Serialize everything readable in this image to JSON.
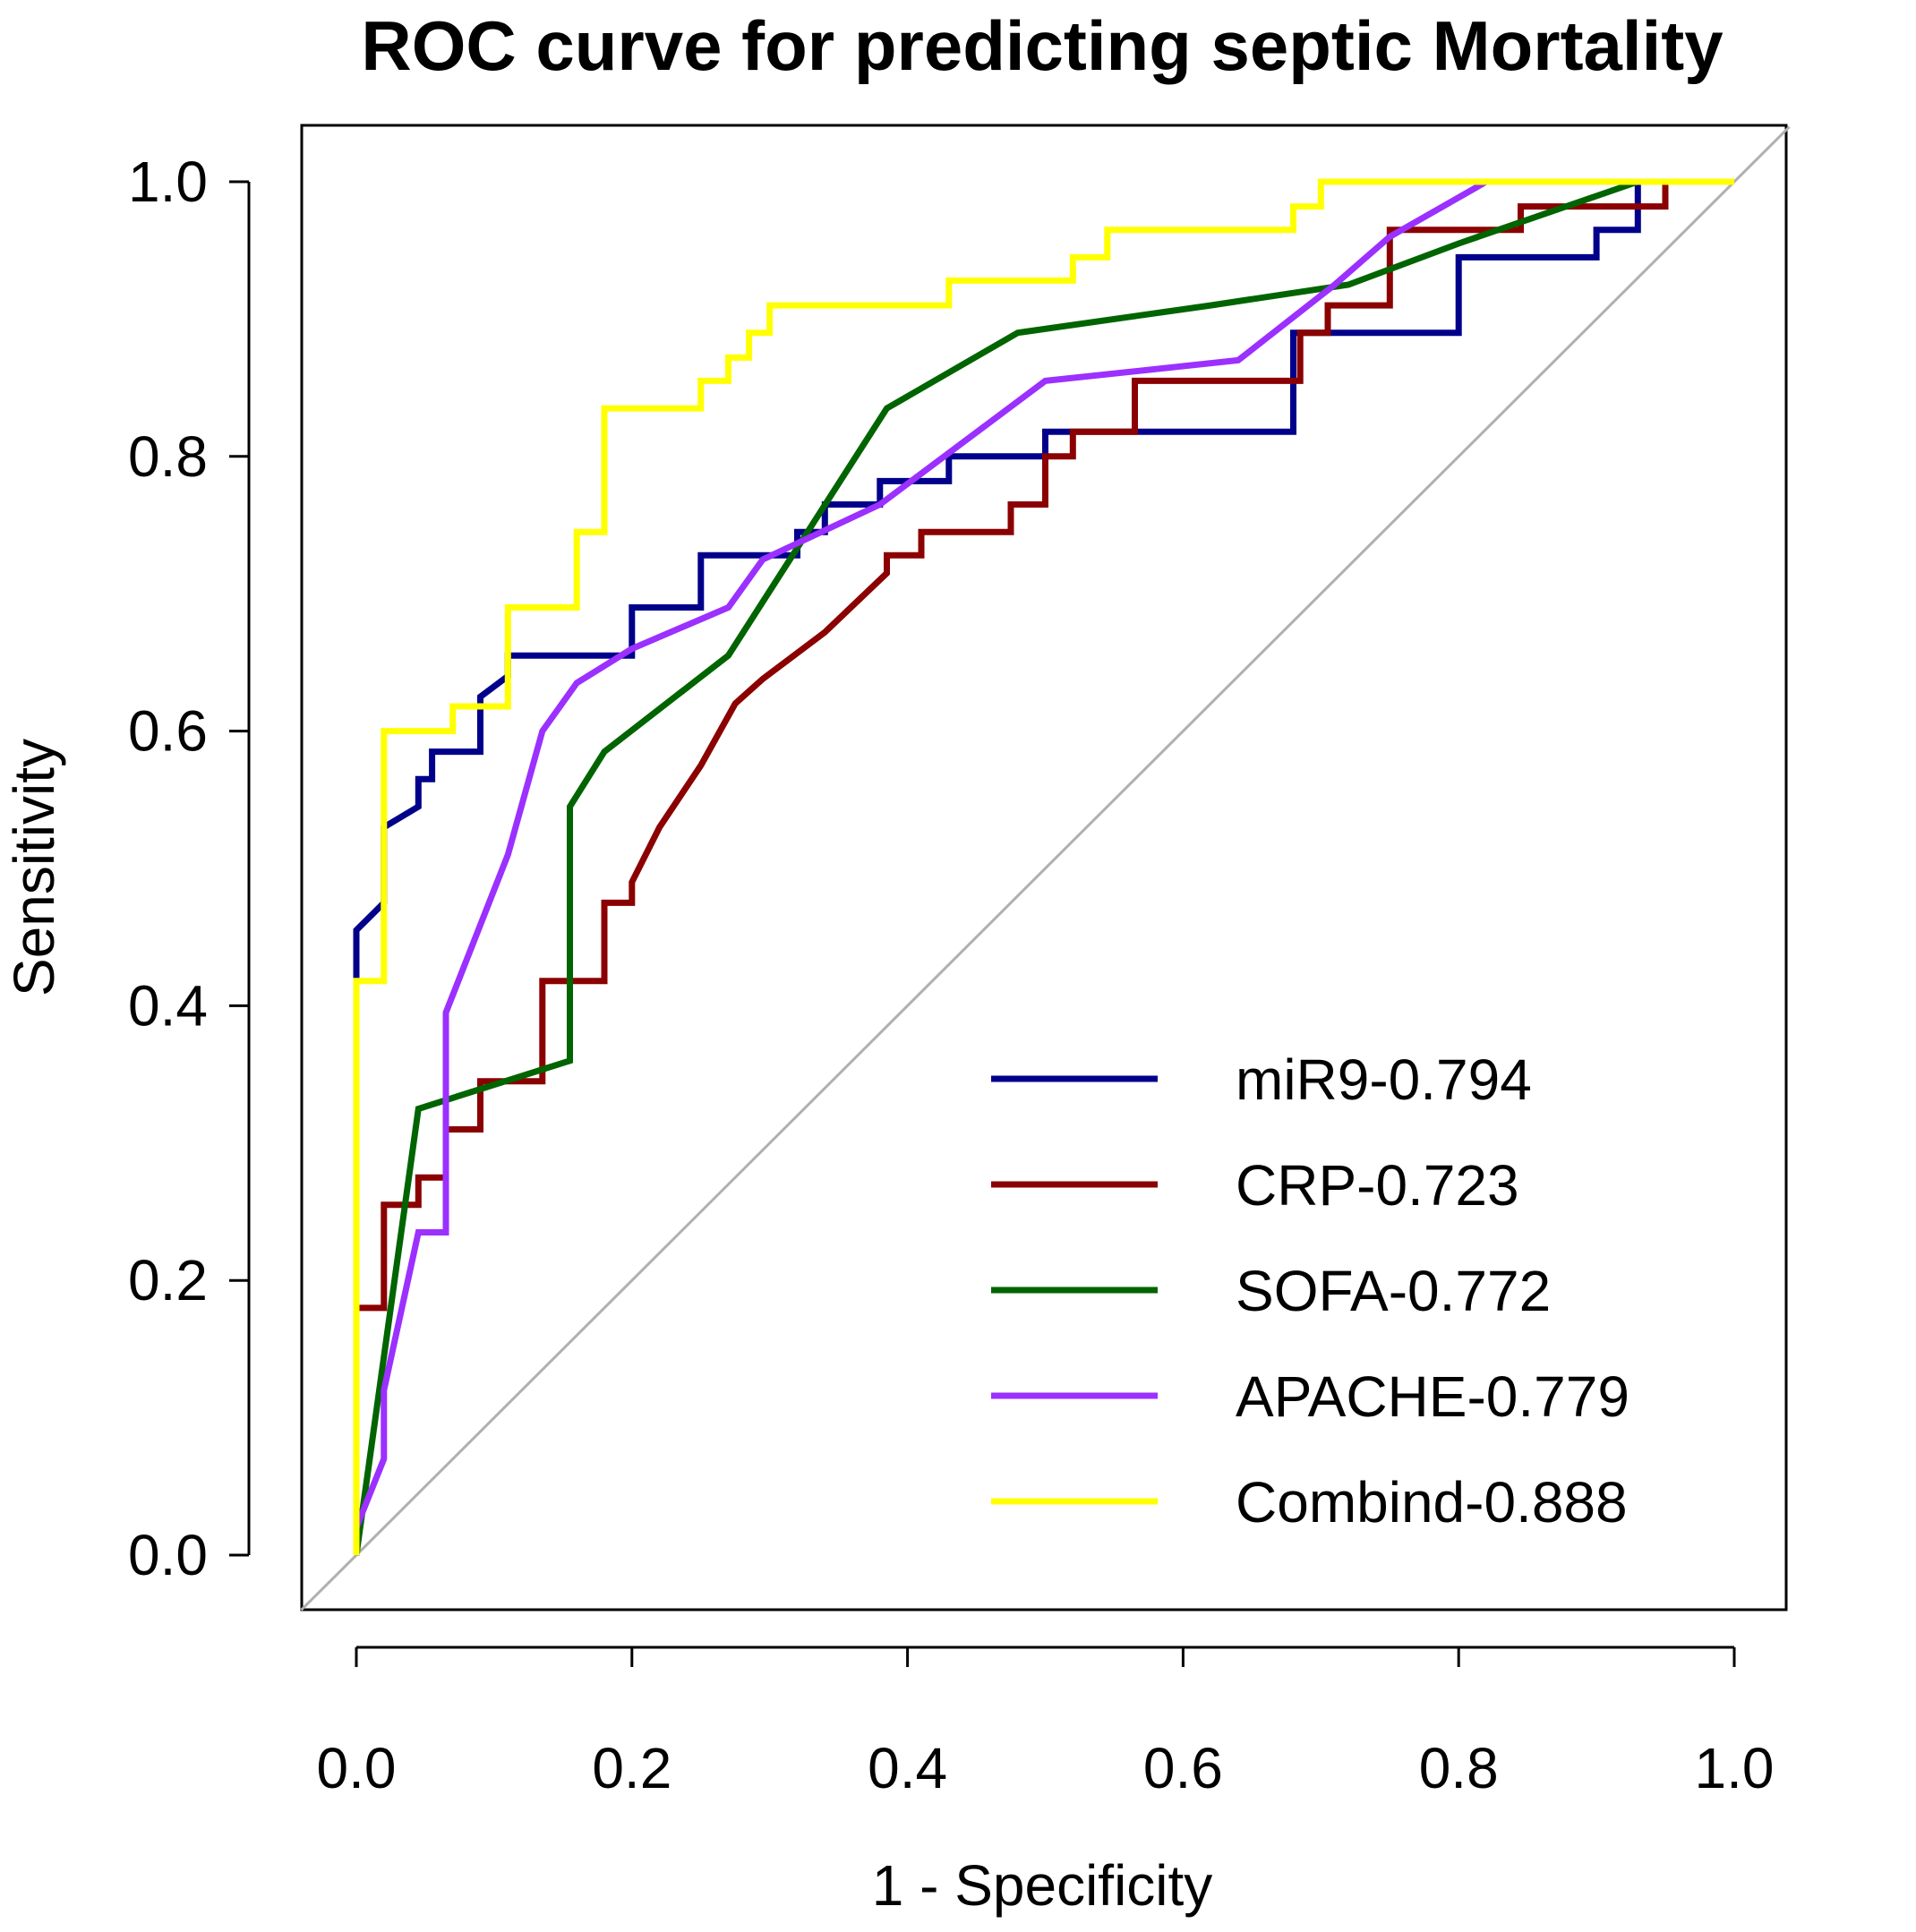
{
  "chart_data": {
    "type": "line",
    "title": "ROC curve for predicting septic Mortality",
    "xlabel": "1 - Specificity",
    "ylabel": "Sensitivity",
    "xlim": [
      0,
      1
    ],
    "ylim": [
      0,
      1
    ],
    "xticks": [
      "0.0",
      "0.2",
      "0.4",
      "0.6",
      "0.8",
      "1.0"
    ],
    "yticks": [
      "0.0",
      "0.2",
      "0.4",
      "0.6",
      "0.8",
      "1.0"
    ],
    "grid": false,
    "legend_position": "bottom-right",
    "reference_line": {
      "name": "chance-diagonal",
      "color": "#b0b0b0",
      "x": [
        0,
        1
      ],
      "y": [
        0,
        1
      ]
    },
    "series": [
      {
        "name": "miR9-0.794",
        "color": "#00008b",
        "x": [
          0,
          0,
          0.02,
          0.02,
          0.045,
          0.045,
          0.055,
          0.055,
          0.09,
          0.09,
          0.11,
          0.11,
          0.2,
          0.2,
          0.25,
          0.25,
          0.32,
          0.32,
          0.34,
          0.34,
          0.38,
          0.38,
          0.43,
          0.43,
          0.5,
          0.5,
          0.68,
          0.68,
          0.8,
          0.8,
          0.9,
          0.9,
          0.93,
          0.93
        ],
        "y": [
          0.42,
          0.455,
          0.475,
          0.53,
          0.545,
          0.565,
          0.565,
          0.585,
          0.585,
          0.625,
          0.64,
          0.655,
          0.655,
          0.69,
          0.69,
          0.728,
          0.728,
          0.745,
          0.745,
          0.765,
          0.765,
          0.782,
          0.782,
          0.8,
          0.8,
          0.818,
          0.818,
          0.89,
          0.89,
          0.945,
          0.945,
          0.965,
          0.965,
          1.0
        ]
      },
      {
        "name": "CRP-0.723",
        "color": "#8b0000",
        "x": [
          0,
          0,
          0.02,
          0.02,
          0.045,
          0.045,
          0.065,
          0.065,
          0.09,
          0.09,
          0.135,
          0.135,
          0.18,
          0.18,
          0.2,
          0.2,
          0.22,
          0.25,
          0.275,
          0.275,
          0.295,
          0.295,
          0.34,
          0.34,
          0.385,
          0.385,
          0.41,
          0.41,
          0.475,
          0.475,
          0.5,
          0.5,
          0.52,
          0.52,
          0.565,
          0.565,
          0.685,
          0.685,
          0.705,
          0.705,
          0.75,
          0.75,
          0.845,
          0.845,
          0.95,
          0.95
        ],
        "y": [
          0,
          0.18,
          0.18,
          0.255,
          0.255,
          0.275,
          0.275,
          0.31,
          0.31,
          0.345,
          0.345,
          0.418,
          0.418,
          0.475,
          0.475,
          0.49,
          0.53,
          0.575,
          0.62,
          0.62,
          0.638,
          0.638,
          0.672,
          0.672,
          0.715,
          0.728,
          0.728,
          0.745,
          0.745,
          0.765,
          0.765,
          0.8,
          0.8,
          0.818,
          0.818,
          0.855,
          0.855,
          0.89,
          0.89,
          0.91,
          0.91,
          0.965,
          0.965,
          0.982,
          0.982,
          1.0
        ]
      },
      {
        "name": "SOFA-0.772",
        "color": "#006400",
        "x": [
          0,
          0.045,
          0.155,
          0.155,
          0.18,
          0.27,
          0.385,
          0.48,
          0.62,
          0.72,
          0.8,
          0.93
        ],
        "y": [
          0,
          0.325,
          0.36,
          0.545,
          0.585,
          0.655,
          0.835,
          0.89,
          0.91,
          0.925,
          0.955,
          1.0
        ]
      },
      {
        "name": "APACHE-0.779",
        "color": "#9b30ff",
        "x": [
          0,
          0.02,
          0.02,
          0.045,
          0.065,
          0.065,
          0.11,
          0.135,
          0.16,
          0.2,
          0.27,
          0.295,
          0.38,
          0.5,
          0.64,
          0.71,
          0.75,
          0.82
        ],
        "y": [
          0.02,
          0.07,
          0.12,
          0.235,
          0.235,
          0.395,
          0.51,
          0.6,
          0.635,
          0.66,
          0.69,
          0.725,
          0.765,
          0.855,
          0.87,
          0.925,
          0.96,
          1.0
        ]
      },
      {
        "name": "Combind-0.888",
        "color": "#ffff00",
        "x": [
          0,
          0,
          0.02,
          0.02,
          0.045,
          0.045,
          0.07,
          0.07,
          0.11,
          0.11,
          0.16,
          0.16,
          0.18,
          0.18,
          0.25,
          0.25,
          0.27,
          0.27,
          0.285,
          0.285,
          0.3,
          0.3,
          0.32,
          0.32,
          0.43,
          0.43,
          0.52,
          0.52,
          0.545,
          0.545,
          0.68,
          0.68,
          0.7,
          0.7,
          1.0
        ],
        "y": [
          0,
          0.418,
          0.418,
          0.6,
          0.6,
          0.6,
          0.6,
          0.618,
          0.618,
          0.69,
          0.69,
          0.745,
          0.745,
          0.835,
          0.835,
          0.855,
          0.855,
          0.872,
          0.872,
          0.89,
          0.89,
          0.91,
          0.91,
          0.91,
          0.91,
          0.928,
          0.928,
          0.945,
          0.945,
          0.965,
          0.965,
          0.982,
          0.982,
          1.0,
          1.0
        ]
      }
    ]
  }
}
